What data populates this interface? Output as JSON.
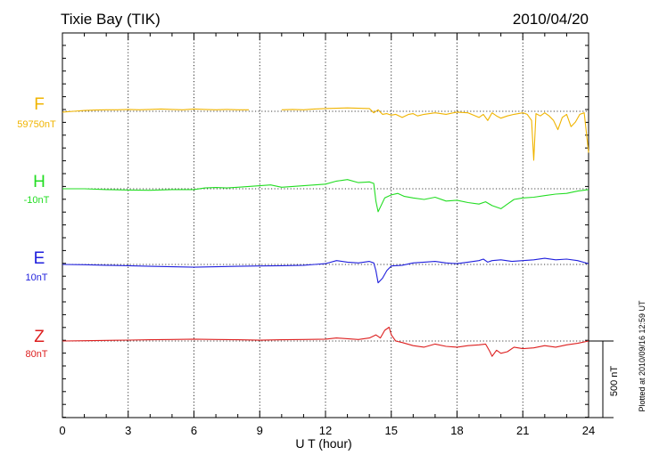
{
  "header": {
    "station": "Tixie Bay (TIK)",
    "date": "2010/04/20"
  },
  "footer": {
    "plotted_note": "Plotted at 2010/09/16 12:59 UT"
  },
  "chart_data": {
    "type": "line",
    "xlabel": "U T (hour)",
    "xlim": [
      0,
      24
    ],
    "xticks": [
      "0",
      "3",
      "6",
      "9",
      "12",
      "15",
      "18",
      "21",
      "24"
    ],
    "grid": true,
    "scale_bar": {
      "label": "500 nT",
      "value_nT": 500
    },
    "series": [
      {
        "name": "F",
        "baseline_label": "59750nT",
        "color": "#f0b400",
        "x": [
          0,
          0.5,
          1,
          1.5,
          2,
          2.5,
          3,
          3.5,
          4,
          4.5,
          5,
          5.5,
          6,
          6.5,
          7,
          7.5,
          8,
          8.5,
          9,
          9.5,
          10,
          10.5,
          11,
          11.5,
          12,
          12.5,
          13,
          13.5,
          14,
          14.2,
          14.4,
          14.6,
          14.8,
          15,
          15.2,
          15.5,
          15.8,
          16,
          16.2,
          16.5,
          17,
          17.5,
          18,
          18.5,
          19,
          19.2,
          19.4,
          19.6,
          19.8,
          20,
          20.3,
          20.6,
          21,
          21.2,
          21.4,
          21.5,
          21.6,
          21.8,
          22,
          22.2,
          22.4,
          22.6,
          22.8,
          23,
          23.2,
          23.4,
          23.6,
          23.8,
          24
        ],
        "values": [
          -5,
          0,
          5,
          8,
          10,
          10,
          12,
          10,
          12,
          15,
          12,
          10,
          15,
          12,
          10,
          12,
          10,
          10,
          null,
          null,
          10,
          12,
          10,
          15,
          18,
          20,
          22,
          20,
          18,
          -10,
          10,
          -20,
          -15,
          -25,
          -20,
          -40,
          -20,
          -15,
          -30,
          -20,
          -10,
          -20,
          -5,
          -10,
          -40,
          -20,
          -60,
          -10,
          -30,
          -45,
          -30,
          -20,
          -10,
          -20,
          -60,
          -320,
          -15,
          -30,
          -10,
          -30,
          -60,
          -120,
          -40,
          -20,
          -100,
          -70,
          -20,
          -10,
          -270
        ],
        "gaps": [
          [
            8.7,
            9.8
          ]
        ]
      },
      {
        "name": "H",
        "baseline_label": "-10nT",
        "color": "#22dd22",
        "x": [
          0,
          1,
          2,
          3,
          4,
          5,
          6,
          6.5,
          7,
          7.5,
          8,
          8.5,
          9,
          9.5,
          10,
          10.5,
          11,
          11.5,
          12,
          12.5,
          13,
          13.5,
          14,
          14.2,
          14.3,
          14.4,
          14.5,
          14.7,
          15,
          15.3,
          15.6,
          16,
          16.5,
          17,
          17.5,
          18,
          18.5,
          19,
          19.3,
          19.6,
          20,
          20.3,
          20.6,
          21,
          21.5,
          22,
          22.5,
          23,
          23.5,
          24
        ],
        "values": [
          0,
          0,
          -5,
          -8,
          -10,
          -5,
          -5,
          5,
          8,
          5,
          10,
          15,
          20,
          25,
          10,
          15,
          20,
          25,
          30,
          50,
          60,
          40,
          45,
          35,
          -80,
          -150,
          -120,
          -60,
          -40,
          -30,
          -50,
          -60,
          -70,
          -55,
          -80,
          -75,
          -90,
          -100,
          -85,
          -110,
          -130,
          -100,
          -70,
          -60,
          -55,
          -45,
          -35,
          -30,
          -15,
          -5
        ]
      },
      {
        "name": "E",
        "baseline_label": "10nT",
        "color": "#1f1fdd",
        "x": [
          0,
          1,
          2,
          3,
          4,
          5,
          6,
          7,
          8,
          9,
          10,
          11,
          11.5,
          12,
          12.5,
          13,
          13.5,
          14,
          14.2,
          14.3,
          14.4,
          14.6,
          14.8,
          15,
          15.5,
          16,
          16.5,
          17,
          17.5,
          18,
          18.5,
          19,
          19.2,
          19.4,
          19.6,
          20,
          20.5,
          21,
          21.5,
          22,
          22.5,
          23,
          23.5,
          24
        ],
        "values": [
          0,
          -2,
          -5,
          -8,
          -12,
          -15,
          -18,
          -15,
          -12,
          -10,
          -8,
          -5,
          0,
          5,
          25,
          15,
          10,
          20,
          10,
          -40,
          -120,
          -90,
          -40,
          -10,
          -5,
          10,
          15,
          20,
          10,
          5,
          15,
          25,
          35,
          15,
          25,
          30,
          20,
          25,
          30,
          40,
          30,
          35,
          25,
          5
        ]
      },
      {
        "name": "Z",
        "baseline_label": "80nT",
        "color": "#dd1f1f",
        "x": [
          0,
          1,
          2,
          3,
          4,
          5,
          6,
          7,
          8,
          9,
          10,
          11,
          12,
          12.5,
          13,
          13.5,
          14,
          14.3,
          14.5,
          14.7,
          14.9,
          15,
          15.2,
          15.5,
          16,
          16.5,
          17,
          17.5,
          18,
          18.5,
          19,
          19.3,
          19.5,
          19.6,
          19.8,
          20,
          20.3,
          20.6,
          21,
          21.5,
          22,
          22.5,
          23,
          23.5,
          24
        ],
        "values": [
          0,
          2,
          4,
          6,
          8,
          10,
          12,
          10,
          8,
          5,
          8,
          10,
          12,
          20,
          15,
          10,
          20,
          40,
          20,
          70,
          90,
          40,
          0,
          -10,
          -30,
          -40,
          -20,
          -35,
          -40,
          -30,
          -25,
          -20,
          -70,
          -100,
          -60,
          -80,
          -70,
          -40,
          -50,
          -45,
          -30,
          -40,
          -25,
          -15,
          0
        ]
      }
    ]
  }
}
